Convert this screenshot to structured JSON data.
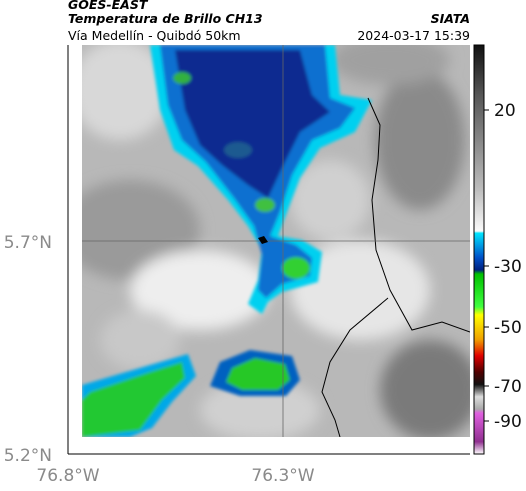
{
  "header": {
    "source": "GOES-EAST",
    "title": "Temperatura de Brillo CH13",
    "org": "SIATA",
    "subtitle": "Vía Medellín - Quibdó 50km",
    "timestamp": "2024-03-17 15:39"
  },
  "map": {
    "lat_labels": [
      "5.7°N",
      "5.2°N"
    ],
    "lon_labels": [
      "76.8°W",
      "76.3°W"
    ]
  },
  "colorbar": {
    "labels": [
      "20",
      "-30",
      "-50",
      "-70",
      "-90"
    ]
  }
}
